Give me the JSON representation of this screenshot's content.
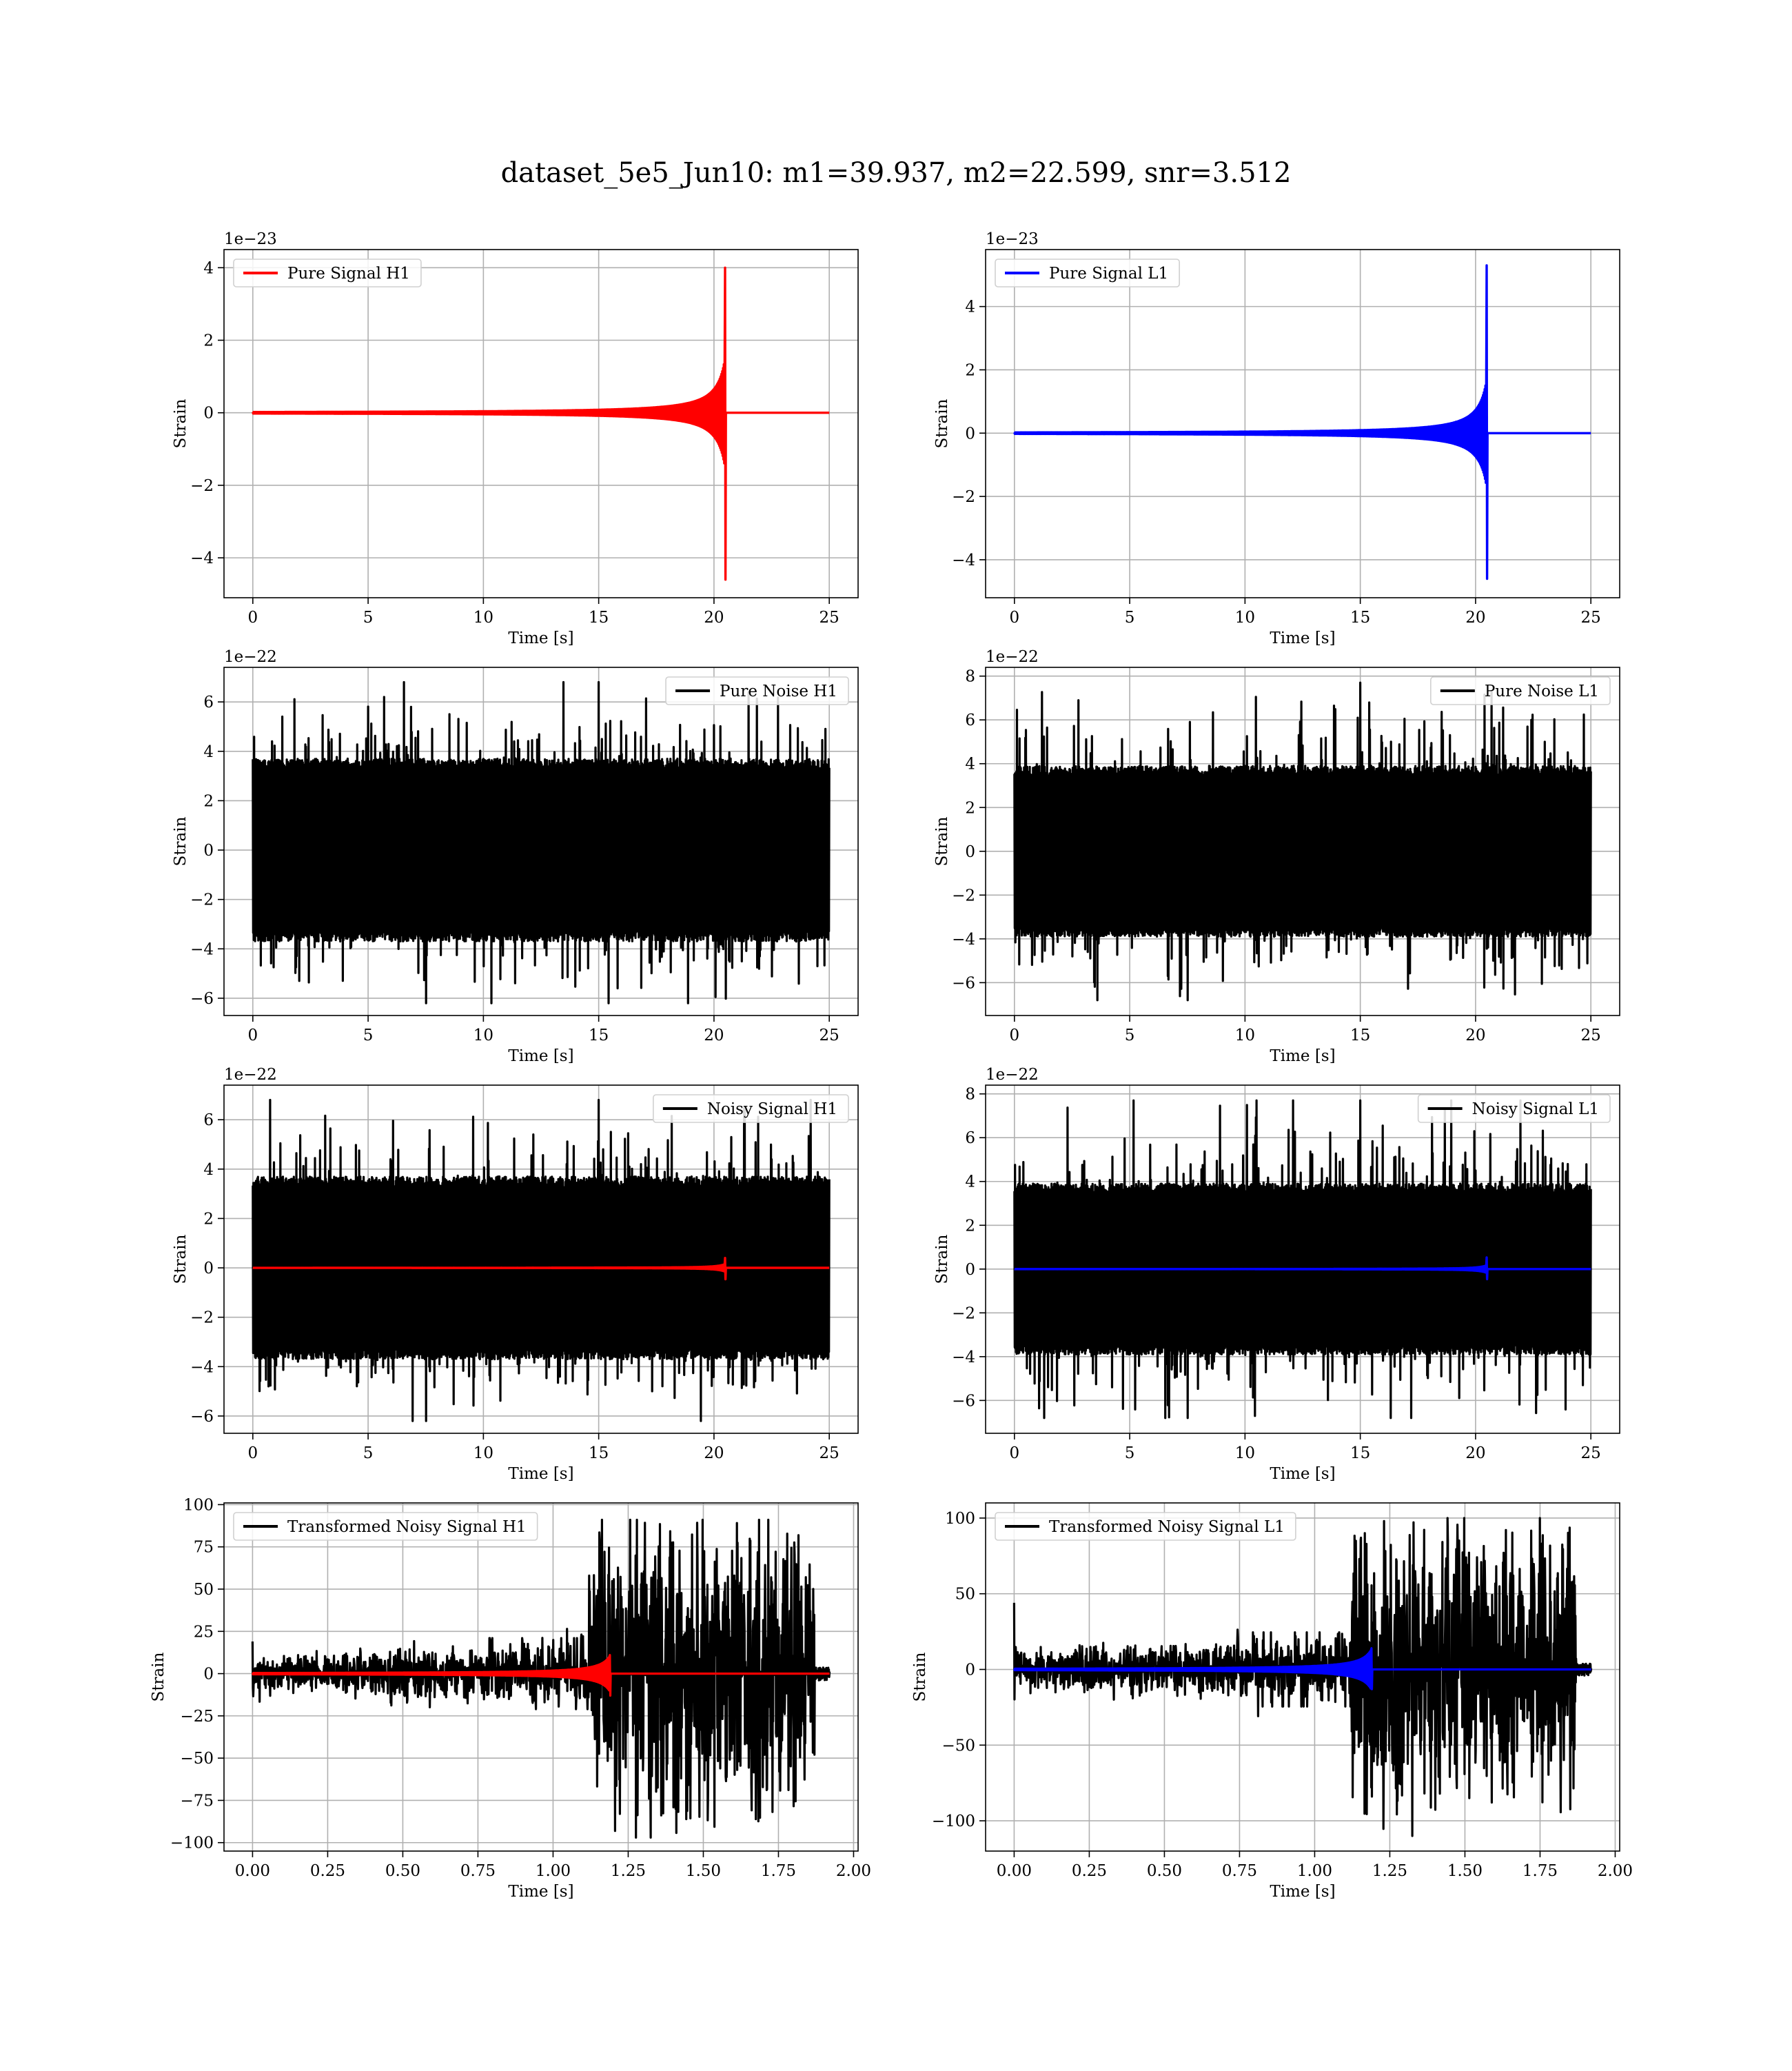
{
  "figure": {
    "title": "dataset_5e5_Jun10: m1=39.937, m2=22.599, snr=3.512",
    "background": "#ffffff",
    "colors": {
      "h1_signal": "#ff0000",
      "l1_signal": "#0000ff",
      "noise": "#000000"
    }
  },
  "chart_data": [
    {
      "id": "pure-signal-h1",
      "type": "line",
      "xlabel": "Time [s]",
      "ylabel": "Strain",
      "offset_text": "1e−23",
      "xlim": [
        -1.25,
        26.25
      ],
      "ylim": [
        -5.1,
        4.5
      ],
      "xticks": [
        0,
        5,
        10,
        15,
        20,
        25
      ],
      "xtick_labels": [
        "0",
        "5",
        "10",
        "15",
        "20",
        "25"
      ],
      "yticks": [
        -4,
        -2,
        0,
        2,
        4
      ],
      "ytick_labels": [
        "−4",
        "−2",
        "0",
        "2",
        "4"
      ],
      "legend": {
        "location": "upper-left",
        "entries": [
          {
            "label": "Pure Signal H1",
            "color": "#ff0000"
          }
        ]
      },
      "grid": true,
      "series": [
        {
          "name": "Pure Signal H1",
          "kind": "chirp",
          "color": "#ff0000",
          "x_start": 0,
          "x_end": 25,
          "merger_time": 20.5,
          "peak_high": 4.0,
          "peak_low": -4.6,
          "near_merger": 1.6
        }
      ]
    },
    {
      "id": "pure-signal-l1",
      "type": "line",
      "xlabel": "Time [s]",
      "ylabel": "Strain",
      "offset_text": "1e−23",
      "xlim": [
        -1.25,
        26.25
      ],
      "ylim": [
        -5.2,
        5.8
      ],
      "xticks": [
        0,
        5,
        10,
        15,
        20,
        25
      ],
      "xtick_labels": [
        "0",
        "5",
        "10",
        "15",
        "20",
        "25"
      ],
      "yticks": [
        -4,
        -2,
        0,
        2,
        4
      ],
      "ytick_labels": [
        "−4",
        "−2",
        "0",
        "2",
        "4"
      ],
      "legend": {
        "location": "upper-left",
        "entries": [
          {
            "label": "Pure Signal L1",
            "color": "#0000ff"
          }
        ]
      },
      "grid": true,
      "series": [
        {
          "name": "Pure Signal L1",
          "kind": "chirp",
          "color": "#0000ff",
          "x_start": 0,
          "x_end": 25,
          "merger_time": 20.5,
          "peak_high": 5.3,
          "peak_low": -4.6,
          "near_merger": 1.8
        }
      ]
    },
    {
      "id": "pure-noise-h1",
      "type": "line",
      "xlabel": "Time [s]",
      "ylabel": "Strain",
      "offset_text": "1e−22",
      "xlim": [
        -1.25,
        26.25
      ],
      "ylim": [
        -6.7,
        7.4
      ],
      "xticks": [
        0,
        5,
        10,
        15,
        20,
        25
      ],
      "xtick_labels": [
        "0",
        "5",
        "10",
        "15",
        "20",
        "25"
      ],
      "yticks": [
        -6,
        -4,
        -2,
        0,
        2,
        4,
        6
      ],
      "ytick_labels": [
        "−6",
        "−4",
        "−2",
        "0",
        "2",
        "4",
        "6"
      ],
      "legend": {
        "location": "upper-right",
        "entries": [
          {
            "label": "Pure Noise H1",
            "color": "#000000"
          }
        ]
      },
      "grid": true,
      "series": [
        {
          "name": "Pure Noise H1",
          "kind": "noise",
          "color": "#000000",
          "x_start": 0,
          "x_end": 25,
          "band": 3.7,
          "max": 6.8,
          "min": -6.2
        }
      ]
    },
    {
      "id": "pure-noise-l1",
      "type": "line",
      "xlabel": "Time [s]",
      "ylabel": "Strain",
      "offset_text": "1e−22",
      "xlim": [
        -1.25,
        26.25
      ],
      "ylim": [
        -7.5,
        8.4
      ],
      "xticks": [
        0,
        5,
        10,
        15,
        20,
        25
      ],
      "xtick_labels": [
        "0",
        "5",
        "10",
        "15",
        "20",
        "25"
      ],
      "yticks": [
        -6,
        -4,
        -2,
        0,
        2,
        4,
        6,
        8
      ],
      "ytick_labels": [
        "−6",
        "−4",
        "−2",
        "0",
        "2",
        "4",
        "6",
        "8"
      ],
      "legend": {
        "location": "upper-right",
        "entries": [
          {
            "label": "Pure Noise L1",
            "color": "#000000"
          }
        ]
      },
      "grid": true,
      "series": [
        {
          "name": "Pure Noise L1",
          "kind": "noise",
          "color": "#000000",
          "x_start": 0,
          "x_end": 25,
          "band": 3.9,
          "max": 7.7,
          "min": -6.8
        }
      ]
    },
    {
      "id": "noisy-signal-h1",
      "type": "line",
      "xlabel": "Time [s]",
      "ylabel": "Strain",
      "offset_text": "1e−22",
      "xlim": [
        -1.25,
        26.25
      ],
      "ylim": [
        -6.7,
        7.4
      ],
      "xticks": [
        0,
        5,
        10,
        15,
        20,
        25
      ],
      "xtick_labels": [
        "0",
        "5",
        "10",
        "15",
        "20",
        "25"
      ],
      "yticks": [
        -6,
        -4,
        -2,
        0,
        2,
        4,
        6
      ],
      "ytick_labels": [
        "−6",
        "−4",
        "−2",
        "0",
        "2",
        "4",
        "6"
      ],
      "legend": {
        "location": "upper-right",
        "entries": [
          {
            "label": "Noisy Signal H1",
            "color": "#000000"
          }
        ]
      },
      "grid": true,
      "series": [
        {
          "name": "Noisy Signal H1",
          "kind": "noise",
          "color": "#000000",
          "x_start": 0,
          "x_end": 25,
          "band": 3.7,
          "max": 6.8,
          "min": -6.2
        },
        {
          "name": "Pure Signal H1",
          "kind": "chirp",
          "color": "#ff0000",
          "x_start": 0,
          "x_end": 25,
          "merger_time": 20.5,
          "peak_high": 0.4,
          "peak_low": -0.46,
          "near_merger": 0.16
        }
      ]
    },
    {
      "id": "noisy-signal-l1",
      "type": "line",
      "xlabel": "Time [s]",
      "ylabel": "Strain",
      "offset_text": "1e−22",
      "xlim": [
        -1.25,
        26.25
      ],
      "ylim": [
        -7.5,
        8.4
      ],
      "xticks": [
        0,
        5,
        10,
        15,
        20,
        25
      ],
      "xtick_labels": [
        "0",
        "5",
        "10",
        "15",
        "20",
        "25"
      ],
      "yticks": [
        -6,
        -4,
        -2,
        0,
        2,
        4,
        6,
        8
      ],
      "ytick_labels": [
        "−6",
        "−4",
        "−2",
        "0",
        "2",
        "4",
        "6",
        "8"
      ],
      "legend": {
        "location": "upper-right",
        "entries": [
          {
            "label": "Noisy Signal L1",
            "color": "#000000"
          }
        ]
      },
      "grid": true,
      "series": [
        {
          "name": "Noisy Signal L1",
          "kind": "noise",
          "color": "#000000",
          "x_start": 0,
          "x_end": 25,
          "band": 3.9,
          "max": 7.7,
          "min": -6.8
        },
        {
          "name": "Pure Signal L1",
          "kind": "chirp",
          "color": "#0000ff",
          "x_start": 0,
          "x_end": 25,
          "merger_time": 20.5,
          "peak_high": 0.53,
          "peak_low": -0.46,
          "near_merger": 0.18
        }
      ]
    },
    {
      "id": "transformed-noisy-signal-h1",
      "type": "line",
      "xlabel": "Time [s]",
      "ylabel": "Strain",
      "offset_text": "",
      "xlim": [
        -0.095,
        2.015
      ],
      "ylim": [
        -105,
        101
      ],
      "xticks": [
        0,
        0.25,
        0.5,
        0.75,
        1.0,
        1.25,
        1.5,
        1.75,
        2.0
      ],
      "xtick_labels": [
        "0.00",
        "0.25",
        "0.50",
        "0.75",
        "1.00",
        "1.25",
        "1.50",
        "1.75",
        "2.00"
      ],
      "yticks": [
        -100,
        -75,
        -50,
        -25,
        0,
        25,
        50,
        75,
        100
      ],
      "ytick_labels": [
        "−100",
        "−75",
        "−50",
        "−25",
        "0",
        "25",
        "50",
        "75",
        "100"
      ],
      "legend": {
        "location": "upper-left",
        "entries": [
          {
            "label": "Transformed Noisy Signal H1",
            "color": "#000000"
          }
        ]
      },
      "grid": true,
      "series": [
        {
          "name": "Transformed Noisy Signal H1",
          "kind": "whitened",
          "color": "#000000",
          "x_start": 0,
          "x_end": 1.92,
          "pre_band": 6,
          "post_band": 45,
          "step_time": 1.12,
          "end_time": 1.87,
          "max": 91,
          "min": -97,
          "start_spike": 19
        },
        {
          "name": "Signal H1",
          "kind": "whitened-chirp",
          "color": "#ff0000",
          "x_start": 0,
          "x_end": 1.92,
          "merger_time": 1.19,
          "peak_high": 11,
          "peak_low": -13
        }
      ]
    },
    {
      "id": "transformed-noisy-signal-l1",
      "type": "line",
      "xlabel": "Time [s]",
      "ylabel": "Strain",
      "offset_text": "",
      "xlim": [
        -0.095,
        2.015
      ],
      "ylim": [
        -120,
        110
      ],
      "xticks": [
        0,
        0.25,
        0.5,
        0.75,
        1.0,
        1.25,
        1.5,
        1.75,
        2.0
      ],
      "xtick_labels": [
        "0.00",
        "0.25",
        "0.50",
        "0.75",
        "1.00",
        "1.25",
        "1.50",
        "1.75",
        "2.00"
      ],
      "yticks": [
        -100,
        -50,
        0,
        50,
        100
      ],
      "ytick_labels": [
        "−100",
        "−50",
        "0",
        "50",
        "100"
      ],
      "legend": {
        "location": "upper-left",
        "entries": [
          {
            "label": "Transformed Noisy Signal L1",
            "color": "#000000"
          }
        ]
      },
      "grid": true,
      "series": [
        {
          "name": "Transformed Noisy Signal L1",
          "kind": "whitened",
          "color": "#000000",
          "x_start": 0,
          "x_end": 1.92,
          "pre_band": 7,
          "post_band": 48,
          "step_time": 1.12,
          "end_time": 1.87,
          "max": 100,
          "min": -110,
          "start_spike": 44
        },
        {
          "name": "Signal L1",
          "kind": "whitened-chirp",
          "color": "#0000ff",
          "x_start": 0,
          "x_end": 1.92,
          "merger_time": 1.19,
          "peak_high": 14,
          "peak_low": -13
        }
      ]
    }
  ]
}
